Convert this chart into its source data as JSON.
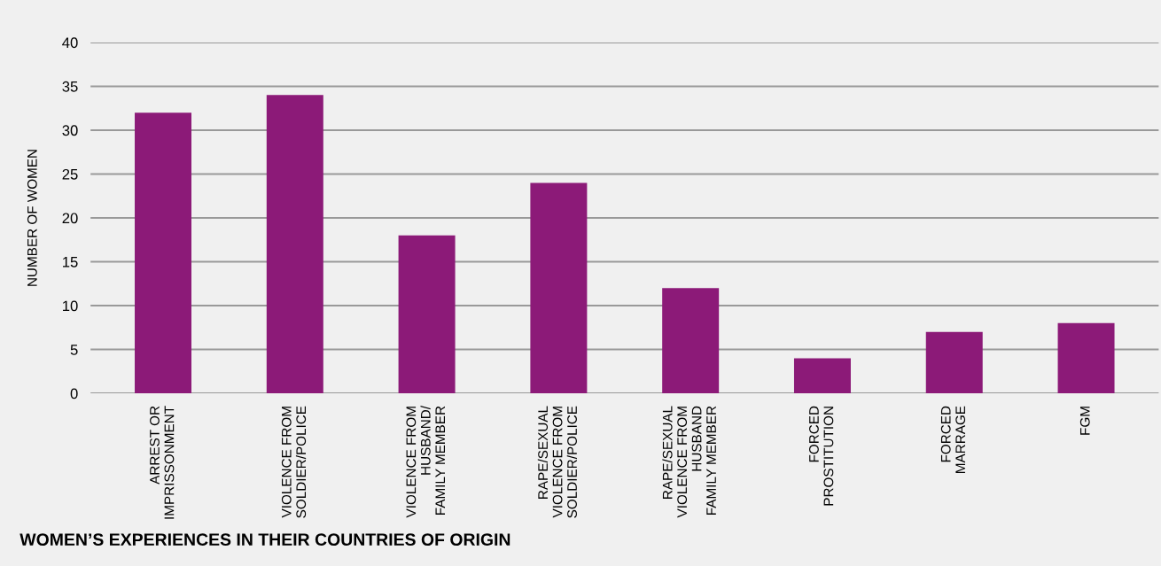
{
  "chart_data": {
    "type": "bar",
    "title": "WOMEN’S EXPERIENCES IN THEIR COUNTRIES OF ORIGIN",
    "ylabel": "NUMBER OF WOMEN",
    "categories": [
      "ARREST OR\nIMPRISSONMENT",
      "VIOLENCE FROM\nSOLDIER/POLICE",
      "VIOLENCE FROM\nHUSBAND/\nFAMILY MEMBER",
      "RAPE/SEXUAL\nVIOLENCE FROM\nSOLDIER/POLICE",
      "RAPE/SEXUAL\nVIOLENCE FROM\nHUSBAND\nFAMILY MEMBER",
      "FORCED\nPROSTITUTION",
      "FORCED\nMARRAGE",
      "FGM"
    ],
    "values": [
      32,
      34,
      18,
      24,
      12,
      4,
      7,
      8
    ],
    "color": "#8c1a78",
    "ylim": [
      0,
      40
    ],
    "yticks": [
      0,
      5,
      10,
      15,
      20,
      25,
      30,
      35,
      40
    ],
    "grid": "y"
  }
}
